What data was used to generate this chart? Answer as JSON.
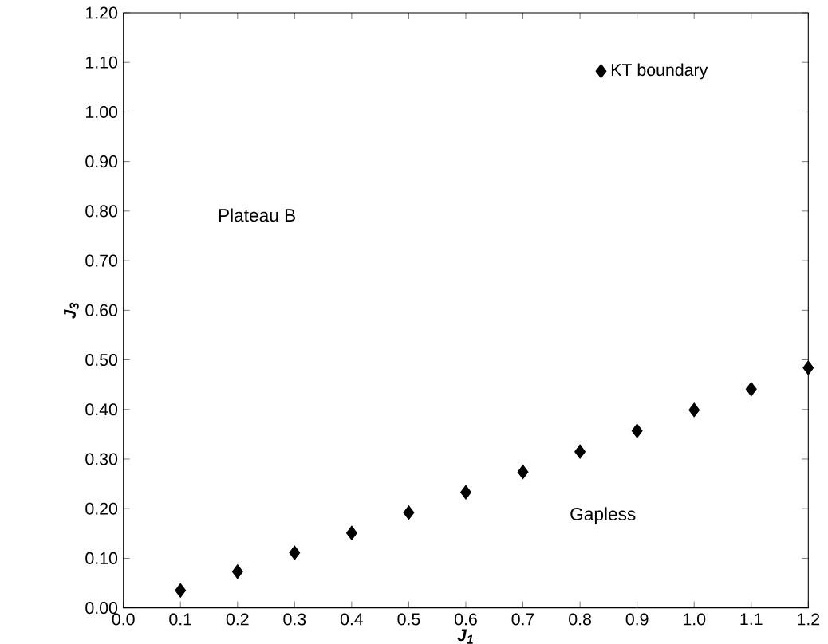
{
  "chart_data": {
    "type": "scatter",
    "xlabel": "J$_{1}$",
    "ylabel": "J$_{3}$",
    "x": [
      0.1,
      0.2,
      0.3,
      0.4,
      0.5,
      0.6,
      0.7,
      0.8,
      0.9,
      1.0,
      1.1,
      1.2
    ],
    "series": [
      {
        "name": "KT boundary",
        "color": "#000000",
        "values": [
          0.035,
          0.073,
          0.111,
          0.151,
          0.192,
          0.233,
          0.274,
          0.315,
          0.357,
          0.399,
          0.441,
          0.484
        ]
      }
    ],
    "marker": "diamond",
    "legend": "top right",
    "grid": false,
    "annotations": [
      "Plateau B",
      "Gapless"
    ],
    "xlim": [
      0,
      1.2
    ],
    "ylim": [
      0,
      1.2
    ],
    "xticks": [
      {
        "value": 0,
        "label": "0.0"
      },
      {
        "value": 0.1,
        "label": "0.1"
      },
      {
        "value": 0.2,
        "label": "0.2"
      },
      {
        "value": 0.3,
        "label": "0.3"
      },
      {
        "value": 0.4,
        "label": "0.4"
      },
      {
        "value": 0.5,
        "label": "0.5"
      },
      {
        "value": 0.6,
        "label": "0.6"
      },
      {
        "value": 0.7,
        "label": "0.7"
      },
      {
        "value": 0.8,
        "label": "0.8"
      },
      {
        "value": 0.9,
        "label": "0.9"
      },
      {
        "value": 1.0,
        "label": "1.0"
      },
      {
        "value": 1.1,
        "label": "1.1"
      },
      {
        "value": 1.2,
        "label": "1.2"
      }
    ],
    "yticks": [
      {
        "value": 0,
        "label": "0.00"
      },
      {
        "value": 0.1,
        "label": "0.10"
      },
      {
        "value": 0.2,
        "label": "0.20"
      },
      {
        "value": 0.3,
        "label": "0.30"
      },
      {
        "value": 0.4,
        "label": "0.40"
      },
      {
        "value": 0.5,
        "label": "0.50"
      },
      {
        "value": 0.6,
        "label": "0.60"
      },
      {
        "value": 0.7,
        "label": "0.70"
      },
      {
        "value": 0.8,
        "label": "0.80"
      },
      {
        "value": 0.9,
        "label": "0.90"
      },
      {
        "value": 1.0,
        "label": "1.00"
      },
      {
        "value": 1.1,
        "label": "1.10"
      },
      {
        "value": 1.2,
        "label": "1.20"
      }
    ]
  }
}
